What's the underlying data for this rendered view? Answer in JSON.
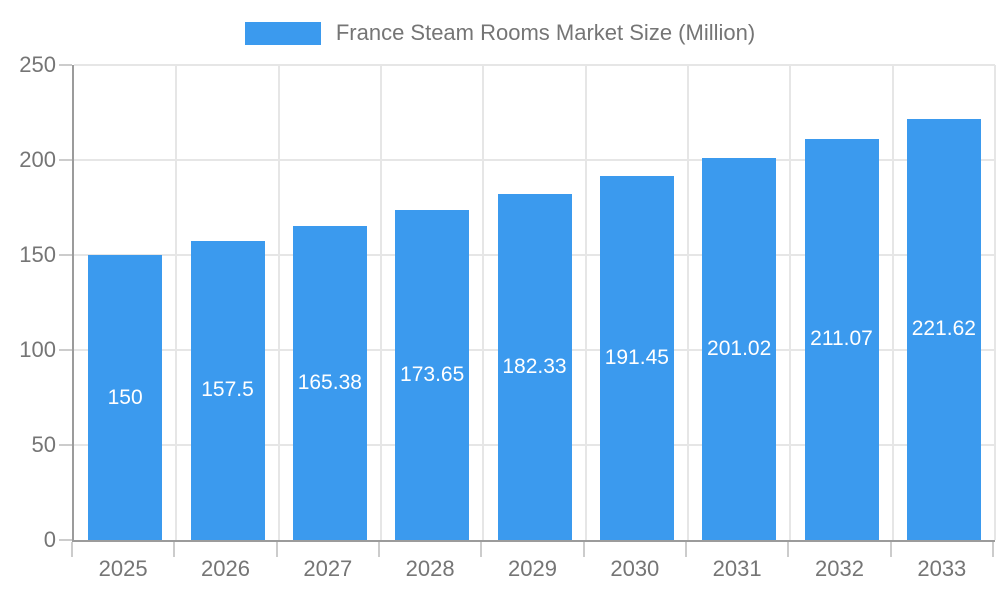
{
  "legend": {
    "swatch_color": "#3b9aee"
  },
  "chart_data": {
    "type": "bar",
    "title": "France Steam Rooms Market Size (Million)",
    "categories": [
      "2025",
      "2026",
      "2027",
      "2028",
      "2029",
      "2030",
      "2031",
      "2032",
      "2033"
    ],
    "values": [
      150,
      157.5,
      165.38,
      173.65,
      182.33,
      191.45,
      201.02,
      211.07,
      221.62
    ],
    "value_labels": [
      "150",
      "157.5",
      "165.38",
      "173.65",
      "182.33",
      "191.45",
      "201.02",
      "211.07",
      "221.62"
    ],
    "xlabel": "",
    "ylabel": "",
    "ylim": [
      0,
      250
    ],
    "yticks": [
      0,
      50,
      100,
      150,
      200,
      250
    ],
    "grid": true,
    "legend_position": "top-center",
    "bar_color": "#3b9aee",
    "bar_label_color": "#ffffff",
    "axis_line_color": "#9b9b9b",
    "gridline_color": "#e6e6e6",
    "tick_mark_color": "#cccccc",
    "axis_text_color": "#757575"
  }
}
